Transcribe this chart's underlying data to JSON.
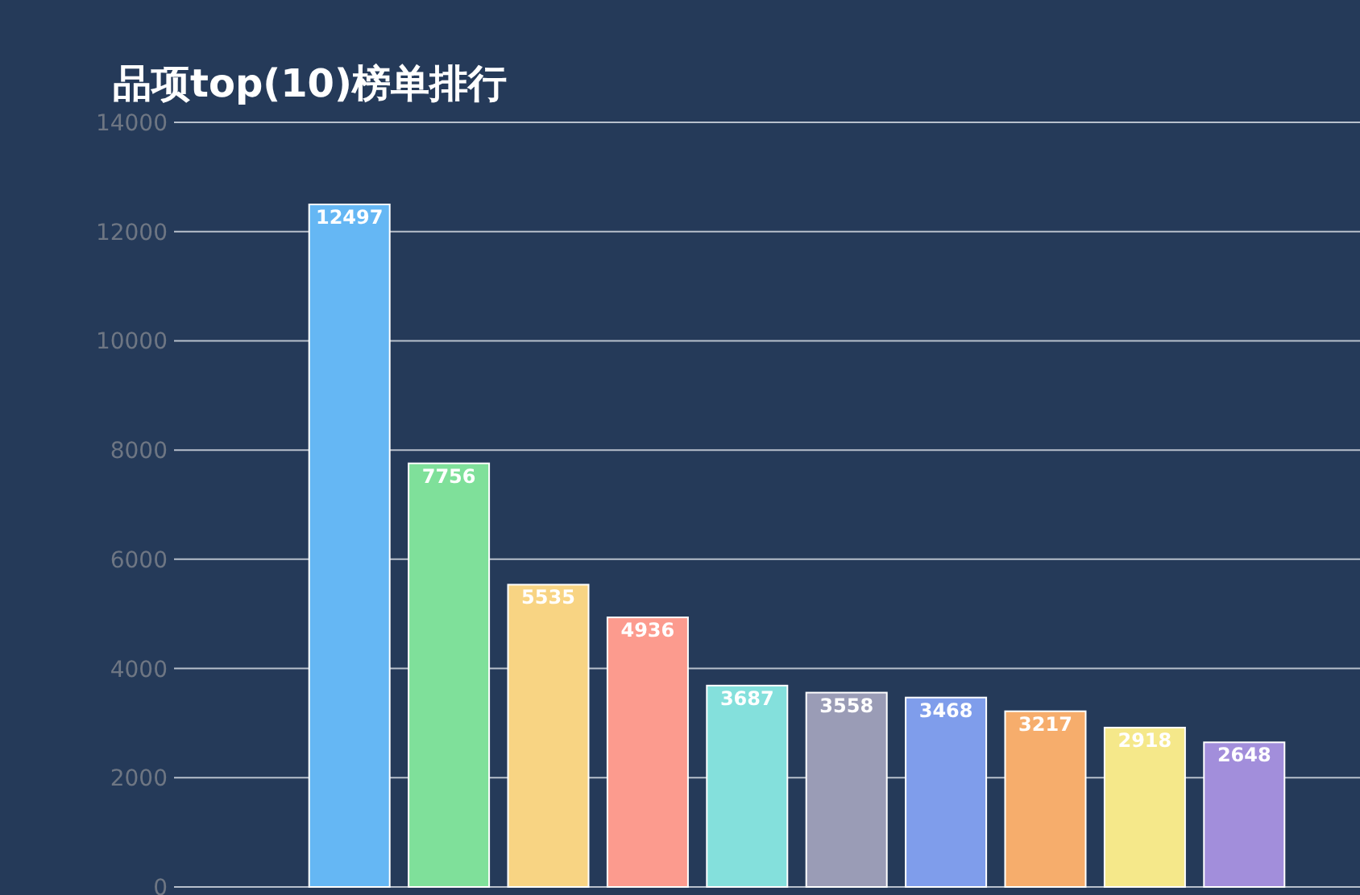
{
  "chart_data": {
    "type": "bar",
    "title": "品项top(10)榜单排行",
    "categories": [
      null,
      null,
      null,
      null,
      null,
      null,
      null,
      null,
      null,
      null
    ],
    "values": [
      12497,
      7756,
      5535,
      4936,
      3687,
      3558,
      3468,
      3217,
      2918,
      2648
    ],
    "colors": [
      "#65b7f4",
      "#7fe09a",
      "#f8d483",
      "#fc9b8e",
      "#84e0dc",
      "#9a9cb6",
      "#7f9deb",
      "#f6ad6c",
      "#f5e88a",
      "#a28edb"
    ],
    "ylim": [
      0,
      14000
    ],
    "yticks": [
      0,
      2000,
      4000,
      6000,
      8000,
      10000,
      12000,
      14000
    ],
    "grid": "y",
    "data_labels": true
  }
}
